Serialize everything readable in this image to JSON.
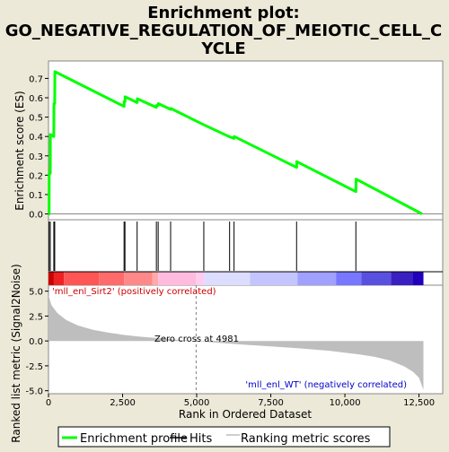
{
  "title_line1": "Enrichment plot:",
  "title_line2": "GO_NEGATIVE_REGULATION_OF_MEIOTIC_CELL_C",
  "title_line3": "YCLE",
  "legend": {
    "enrichment_profile": "Enrichment profile",
    "hits": "Hits",
    "ranking_metric": "Ranking metric scores"
  },
  "colors": {
    "background": "#ece9d8",
    "profile": "#00ff00",
    "metric_fill": "#bebebe",
    "zero_cross_line": "#808080",
    "positive_label": "#cc0000",
    "negative_label": "#0000cc"
  },
  "chart_data": {
    "type": "line",
    "xlabel": "Rank in Ordered Dataset",
    "xlim": [
      0,
      13300
    ],
    "x_ticks": [
      0,
      2500,
      5000,
      7500,
      10000,
      12500
    ],
    "x_tick_labels": [
      "0",
      "2,500",
      "5,000",
      "7,500",
      "10,000",
      "12,500"
    ],
    "es_panel": {
      "ylabel": "Enrichment score (ES)",
      "ylim": [
        -0.03,
        0.79
      ],
      "y_ticks": [
        0.0,
        0.1,
        0.2,
        0.3,
        0.4,
        0.5,
        0.6,
        0.7
      ],
      "y_tick_labels": [
        "0.0",
        "0.1",
        "0.2",
        "0.3",
        "0.4",
        "0.5",
        "0.6",
        "0.7"
      ],
      "series": [
        {
          "name": "Enrichment profile",
          "x": [
            0,
            20,
            25,
            60,
            65,
            180,
            185,
            210,
            215,
            2550,
            2555,
            2580,
            2585,
            2990,
            2995,
            3640,
            3645,
            3700,
            3705,
            4120,
            4125,
            5240,
            5245,
            6110,
            6115,
            6260,
            6265,
            8370,
            8375,
            10370,
            10375,
            12600
          ],
          "y": [
            0.0,
            0.0,
            0.21,
            0.21,
            0.41,
            0.4,
            0.57,
            0.57,
            0.735,
            0.555,
            0.58,
            0.58,
            0.605,
            0.575,
            0.595,
            0.55,
            0.56,
            0.56,
            0.57,
            0.54,
            0.545,
            0.46,
            0.46,
            0.398,
            0.398,
            0.39,
            0.4,
            0.24,
            0.27,
            0.115,
            0.18,
            0.0
          ]
        }
      ]
    },
    "hits": [
      20,
      60,
      180,
      210,
      2550,
      2580,
      2990,
      3640,
      3700,
      4120,
      5240,
      6110,
      6260,
      8370,
      10370
    ],
    "heat_colors": [
      "#cc0000",
      "#ee2222",
      "#ff5555",
      "#ff6a6a",
      "#ff8888",
      "#ffaaaa",
      "#ffbbdd",
      "#ffccf0",
      "#ddddff",
      "#c4c4ff",
      "#a0a0ff",
      "#7777ff",
      "#5a50e0",
      "#3a20c0",
      "#2200bb"
    ],
    "heat_breaks": [
      0,
      180,
      520,
      1700,
      2550,
      3500,
      3700,
      4980,
      5250,
      6800,
      8400,
      9700,
      10550,
      11550,
      12300,
      12650
    ],
    "metric_panel": {
      "ylabel": "Ranked list metric (Signal2Noise)",
      "ylim": [
        -5.3,
        5.6
      ],
      "y_ticks": [
        5.0,
        2.5,
        0.0,
        -2.5,
        -5.0
      ],
      "y_tick_labels": [
        "5.0",
        "2.5",
        "0.0",
        "-2.5",
        "-5.0"
      ],
      "x": [
        0,
        100,
        300,
        600,
        1000,
        1500,
        2000,
        2500,
        3000,
        3500,
        4000,
        4500,
        4981,
        5500,
        6500,
        7500,
        8500,
        9500,
        10500,
        11000,
        11500,
        12000,
        12300,
        12500,
        12650
      ],
      "y": [
        4.6,
        3.6,
        2.8,
        2.1,
        1.55,
        1.12,
        0.85,
        0.62,
        0.46,
        0.33,
        0.2,
        0.09,
        0.0,
        -0.13,
        -0.35,
        -0.55,
        -0.75,
        -1.0,
        -1.35,
        -1.6,
        -1.95,
        -2.55,
        -3.1,
        -3.7,
        -4.9
      ]
    },
    "positive_label": "'mll_enl_Sirt2' (positively correlated)",
    "negative_label": "'mll_enl_WT' (negatively correlated)",
    "zero_cross_rank": 4981,
    "zero_cross_label": "Zero cross at 4981"
  }
}
